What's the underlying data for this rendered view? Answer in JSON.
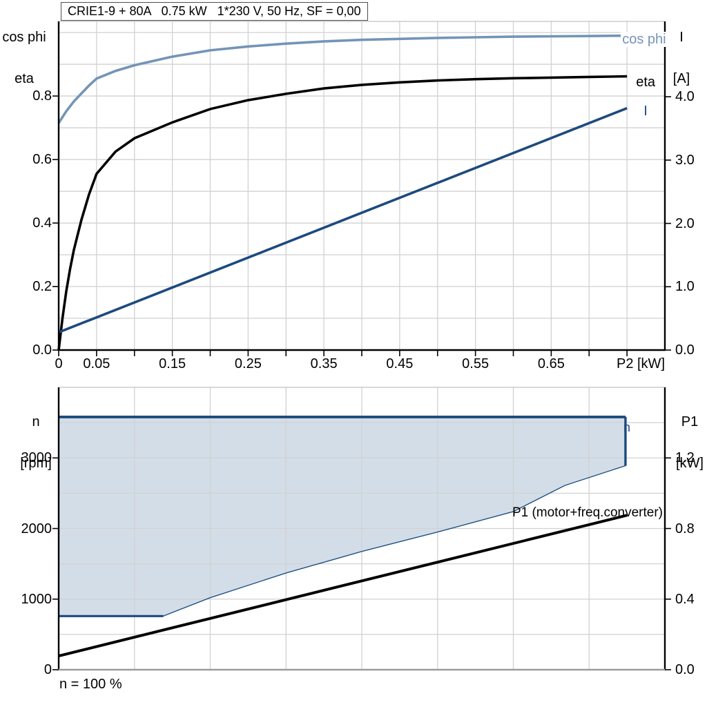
{
  "colors": {
    "grid": "#d1d1d1",
    "axis": "#000000",
    "plot_border": "#b3b3b3",
    "bottom_x_axis": "#9b9b9b",
    "cos_phi_blue": "#7394b7",
    "dark_blue": "#1c4a7e",
    "envelope_fill": "#d3dde8",
    "envelope_edge": "#1f5183",
    "black": "#000000"
  },
  "chart_data": [
    {
      "type": "line",
      "title": "CRIE1-9 + 80A   0.75 kW   1*230 V, 50 Hz, SF = 0,00",
      "x_axis": {
        "title": "P2 [kW]",
        "range": [
          0,
          0.8
        ],
        "grid_step": 0.05,
        "tick_step": 0.05,
        "tick_max": 0.75,
        "tick_labels": [
          "0",
          "0.05",
          "0.15",
          "0.25",
          "0.35",
          "0.45",
          "0.55",
          "0.65"
        ],
        "tick_values": [
          0,
          0.05,
          0.15,
          0.25,
          0.35,
          0.45,
          0.55,
          0.65
        ]
      },
      "left_axis": {
        "title_line1": "cos phi",
        "title_line2": "eta",
        "range": [
          0,
          1.035
        ],
        "grid_step": 0.1,
        "tick_labels": [
          "0.0",
          "0.2",
          "0.4",
          "0.6",
          "0.8"
        ],
        "tick_values": [
          0,
          0.2,
          0.4,
          0.6,
          0.8
        ]
      },
      "right_axis": {
        "title_line1": "I",
        "title_line2": "[A]",
        "range": [
          0,
          5.19
        ],
        "tick_labels": [
          "0.0",
          "1.0",
          "2.0",
          "3.0",
          "4.0"
        ],
        "tick_values": [
          0,
          1,
          2,
          3,
          4
        ]
      },
      "series": [
        {
          "name": "cos phi",
          "axis": "left",
          "color": "#7394b7",
          "width": 3.6,
          "x": [
            0,
            0.01,
            0.02,
            0.03,
            0.04,
            0.05,
            0.075,
            0.1,
            0.15,
            0.2,
            0.25,
            0.3,
            0.35,
            0.4,
            0.45,
            0.5,
            0.55,
            0.6,
            0.65,
            0.7,
            0.75
          ],
          "y": [
            0.715,
            0.752,
            0.783,
            0.808,
            0.833,
            0.855,
            0.879,
            0.897,
            0.924,
            0.944,
            0.956,
            0.965,
            0.972,
            0.977,
            0.98,
            0.983,
            0.985,
            0.987,
            0.988,
            0.989,
            0.99
          ]
        },
        {
          "name": "eta",
          "axis": "left",
          "color": "#000000",
          "width": 3.6,
          "x": [
            0,
            0.005,
            0.01,
            0.015,
            0.02,
            0.03,
            0.04,
            0.05,
            0.075,
            0.1,
            0.15,
            0.2,
            0.25,
            0.3,
            0.35,
            0.4,
            0.45,
            0.5,
            0.55,
            0.6,
            0.65,
            0.7,
            0.75
          ],
          "y": [
            0,
            0.1,
            0.185,
            0.255,
            0.315,
            0.41,
            0.49,
            0.555,
            0.625,
            0.667,
            0.717,
            0.759,
            0.787,
            0.807,
            0.824,
            0.835,
            0.843,
            0.849,
            0.853,
            0.856,
            0.858,
            0.86,
            0.862
          ]
        },
        {
          "name": "I",
          "axis": "right",
          "color": "#1c4a7e",
          "width": 3.6,
          "x": [
            0,
            0.75
          ],
          "y": [
            0.28,
            3.82
          ]
        }
      ]
    },
    {
      "type": "line+area",
      "x_axis": {
        "range": [
          0,
          0.8
        ],
        "grid_step": 0.1
      },
      "left_axis": {
        "title_line1": "n",
        "title_line2": "[rpm]",
        "range": [
          0,
          4000
        ],
        "grid_step": 500,
        "tick_labels": [
          "0",
          "1000",
          "2000",
          "3000"
        ],
        "tick_values": [
          0,
          1000,
          2000,
          3000
        ]
      },
      "right_axis": {
        "title_line1": "P1",
        "title_line2": "[kW]",
        "range": [
          0,
          1.6
        ],
        "tick_labels": [
          "0.0",
          "0.4",
          "0.8",
          "1.2"
        ],
        "tick_values": [
          0,
          0.4,
          0.8,
          1.2
        ]
      },
      "envelope": {
        "name": "n",
        "max_speed_rpm": 3580,
        "min_speed_rpm": 760,
        "points": [
          [
            0,
            3580
          ],
          [
            0.748,
            3580
          ],
          [
            0.748,
            2890
          ],
          [
            0.668,
            2610
          ],
          [
            0.6,
            2240
          ],
          [
            0.5,
            1950
          ],
          [
            0.4,
            1675
          ],
          [
            0.3,
            1370
          ],
          [
            0.2,
            1020
          ],
          [
            0.138,
            760
          ],
          [
            0,
            760
          ]
        ]
      },
      "series": [
        {
          "name": "P1 (motor+freq.converter)",
          "axis": "right",
          "color": "#000000",
          "width": 4,
          "x": [
            0,
            0.75
          ],
          "y": [
            0.078,
            0.875
          ]
        }
      ],
      "footnote": "n = 100 %"
    }
  ]
}
